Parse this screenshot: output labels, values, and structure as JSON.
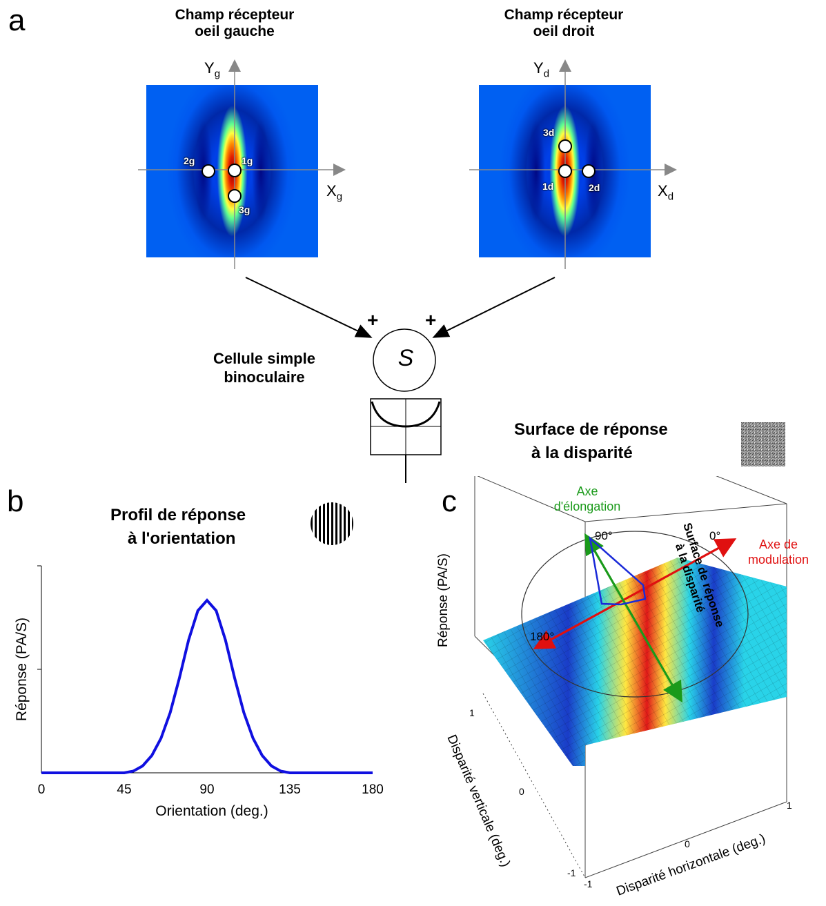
{
  "panels": {
    "a": "a",
    "b": "b",
    "c": "c"
  },
  "receptive_fields": {
    "left": {
      "title_line1": "Champ récepteur",
      "title_line2": "oeil gauche",
      "y_axis": "Y",
      "y_sub": "g",
      "x_axis": "X",
      "x_sub": "g",
      "points": [
        "1g",
        "2g",
        "3g"
      ]
    },
    "right": {
      "title_line1": "Champ récepteur",
      "title_line2": "oeil droit",
      "y_axis": "Y",
      "y_sub": "d",
      "x_axis": "X",
      "x_sub": "d",
      "points": [
        "1d",
        "2d",
        "3d"
      ]
    }
  },
  "plus_sign": "+",
  "cell": {
    "symbol": "S",
    "label_line1": "Cellule simple",
    "label_line2": "binoculaire"
  },
  "surface_legend": {
    "line1": "Surface de réponse",
    "line2": "à la disparité"
  },
  "orientation_legend": {
    "line1": "Profil de réponse",
    "line2": "à l'orientation"
  },
  "colors": {
    "curve": "#1010e0",
    "modulation_axis": "#e01010",
    "elongation_axis": "#1a9a1a",
    "surface_cyan": "#29d3e8"
  },
  "chart_data": {
    "type": "line",
    "xlabel": "Orientation (deg.)",
    "ylabel": "Réponse (PA/S)",
    "xlim": [
      0,
      180
    ],
    "x_ticks": [
      "0",
      "45",
      "90",
      "135",
      "180"
    ],
    "x": [
      0,
      30,
      45,
      50,
      55,
      60,
      65,
      70,
      75,
      80,
      85,
      90,
      95,
      100,
      105,
      110,
      115,
      120,
      125,
      130,
      135,
      150,
      180
    ],
    "y": [
      0,
      0,
      0.0,
      0.01,
      0.04,
      0.1,
      0.2,
      0.35,
      0.55,
      0.77,
      0.94,
      1.0,
      0.94,
      0.77,
      0.55,
      0.35,
      0.2,
      0.1,
      0.04,
      0.01,
      0.0,
      0,
      0
    ],
    "ylim": [
      0,
      1.2
    ]
  },
  "surface_plot": {
    "zlabel": "Réponse (PA/S)",
    "xlabel": "Disparité horizontale (deg.)",
    "ylabel": "Disparité verticale (deg.)",
    "x_ticks": [
      "-1",
      "0",
      "1"
    ],
    "y_ticks": [
      "1",
      "0",
      "-1"
    ],
    "elongation_label_line1": "Axe",
    "elongation_label_line2": "d'élongation",
    "modulation_label_line1": "Axe de",
    "modulation_label_line2": "modulation",
    "angle_90": "90°",
    "angle_0": "0°",
    "angle_180": "180°",
    "overlay_line1": "Surface de réponse",
    "overlay_line2": "à la disparité"
  }
}
